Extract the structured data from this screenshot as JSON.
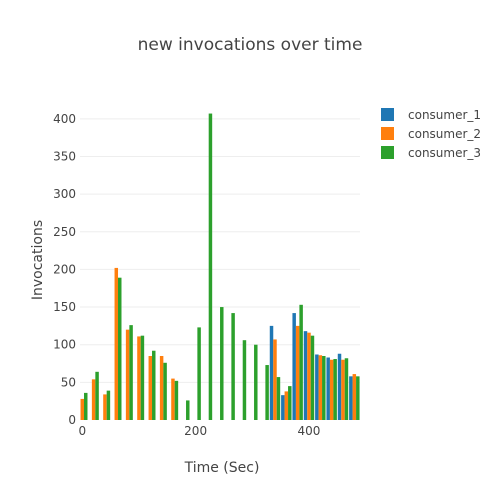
{
  "chart_data": {
    "type": "bar",
    "title": "new invocations over time",
    "xlabel": "Time (Sec)",
    "ylabel": "Invocations",
    "xlim": [
      -4,
      490
    ],
    "ylim": [
      0,
      425
    ],
    "xticks": [
      0,
      200,
      400
    ],
    "yticks": [
      0,
      50,
      100,
      150,
      200,
      250,
      300,
      350,
      400
    ],
    "grid": true,
    "legend_position": "top-right",
    "bin_width": 20,
    "series": [
      {
        "name": "consumer_1",
        "color": "#1f77b4",
        "x": [
          340,
          360,
          380,
          400,
          420,
          440,
          460,
          480
        ],
        "values": [
          125,
          33,
          142,
          118,
          87,
          83,
          88,
          58
        ]
      },
      {
        "name": "consumer_2",
        "color": "#ff7f0e",
        "x": [
          0,
          20,
          40,
          60,
          80,
          100,
          120,
          140,
          160,
          340,
          360,
          380,
          400,
          420,
          440,
          460,
          480
        ],
        "values": [
          28,
          54,
          34,
          202,
          120,
          111,
          85,
          85,
          55,
          107,
          38,
          125,
          116,
          86,
          80,
          80,
          61
        ]
      },
      {
        "name": "consumer_3",
        "color": "#2ca02c",
        "x": [
          0,
          20,
          40,
          60,
          80,
          100,
          120,
          140,
          160,
          180,
          200,
          220,
          240,
          260,
          280,
          300,
          320,
          340,
          360,
          380,
          400,
          420,
          440,
          460,
          480
        ],
        "values": [
          36,
          64,
          39,
          189,
          126,
          112,
          92,
          76,
          52,
          26,
          123,
          407,
          150,
          142,
          106,
          100,
          73,
          57,
          45,
          153,
          112,
          85,
          81,
          82,
          58
        ]
      }
    ]
  }
}
